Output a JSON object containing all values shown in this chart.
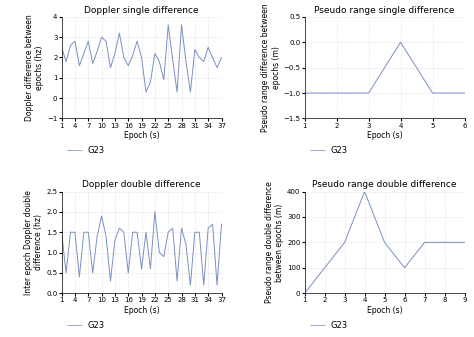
{
  "title_tl": "Doppler single difference",
  "title_tr": "Pseudo range single difference",
  "title_bl": "Doppler double difference",
  "title_br": "Pseudo range double difference",
  "xlabel": "Epoch (s)",
  "ylabel_tl": "Doppler difference between\nepochs (hz)",
  "ylabel_tr": "Pseudo range difference between\nepochs (m)",
  "ylabel_bl": "Inter epoch Doppler double\ndifference (hz)",
  "ylabel_br": "Pseudo range double difference\nbetween epochs (m)",
  "legend_label": "G23",
  "line_color": "#7a8fc2",
  "tl_ylim": [
    -1,
    4
  ],
  "tl_yticks": [
    -1,
    0,
    1,
    2,
    3,
    4
  ],
  "tl_xlim": [
    1,
    37
  ],
  "tl_xticks": [
    1,
    4,
    7,
    10,
    13,
    16,
    19,
    22,
    25,
    28,
    31,
    34,
    37
  ],
  "tr_ylim": [
    -1.5,
    0.5
  ],
  "tr_yticks": [
    -1.5,
    -1.0,
    -0.5,
    0.0,
    0.5
  ],
  "tr_xlim": [
    1,
    6
  ],
  "tr_xticks": [
    1,
    2,
    3,
    4,
    5,
    6
  ],
  "bl_ylim": [
    0,
    2.5
  ],
  "bl_yticks": [
    0,
    0.5,
    1.0,
    1.5,
    2.0,
    2.5
  ],
  "bl_xlim": [
    1,
    37
  ],
  "bl_xticks": [
    1,
    4,
    7,
    10,
    13,
    16,
    19,
    22,
    25,
    28,
    31,
    34,
    37
  ],
  "br_ylim": [
    0,
    400
  ],
  "br_yticks": [
    0,
    100,
    200,
    300,
    400
  ],
  "br_xlim": [
    1,
    9
  ],
  "br_xticks": [
    1,
    2,
    3,
    4,
    5,
    6,
    7,
    8,
    9
  ],
  "tl_x": [
    1,
    2,
    3,
    4,
    5,
    6,
    7,
    8,
    9,
    10,
    11,
    12,
    13,
    14,
    15,
    16,
    17,
    18,
    19,
    20,
    21,
    22,
    23,
    24,
    25,
    26,
    27,
    28,
    29,
    30,
    31,
    32,
    33,
    34,
    35,
    36,
    37
  ],
  "tl_y": [
    2.5,
    1.8,
    2.6,
    2.8,
    1.6,
    2.2,
    2.8,
    1.7,
    2.3,
    3.0,
    2.8,
    1.5,
    2.2,
    3.2,
    2.0,
    1.6,
    2.1,
    2.8,
    2.0,
    0.3,
    0.8,
    2.2,
    1.8,
    0.9,
    3.6,
    1.9,
    0.3,
    3.6,
    1.8,
    0.3,
    2.4,
    2.0,
    1.8,
    2.5,
    2.0,
    1.5,
    2.0
  ],
  "tr_x": [
    1,
    2,
    3,
    4,
    5,
    6
  ],
  "tr_y": [
    -1.0,
    -1.0,
    -1.0,
    0.0,
    -1.0,
    -1.0
  ],
  "bl_x": [
    1,
    2,
    3,
    4,
    5,
    6,
    7,
    8,
    9,
    10,
    11,
    12,
    13,
    14,
    15,
    16,
    17,
    18,
    19,
    20,
    21,
    22,
    23,
    24,
    25,
    26,
    27,
    28,
    29,
    30,
    31,
    32,
    33,
    34,
    35,
    36,
    37
  ],
  "bl_y": [
    1.5,
    0.5,
    1.5,
    1.5,
    0.4,
    1.5,
    1.5,
    0.5,
    1.4,
    1.9,
    1.4,
    0.3,
    1.3,
    1.6,
    1.5,
    0.5,
    1.5,
    1.5,
    0.6,
    1.5,
    0.6,
    2.0,
    1.0,
    0.9,
    1.5,
    1.6,
    0.3,
    1.6,
    1.2,
    0.2,
    1.5,
    1.5,
    0.2,
    1.6,
    1.7,
    0.2,
    1.7
  ],
  "br_x": [
    1,
    2,
    3,
    4,
    5,
    6,
    7,
    8,
    9
  ],
  "br_y": [
    0,
    100,
    200,
    400,
    200,
    100,
    200,
    200,
    200
  ],
  "background_color": "#ffffff",
  "grid_color": "#d0d0d0",
  "title_fontsize": 6.5,
  "label_fontsize": 5.5,
  "tick_fontsize": 5,
  "legend_fontsize": 6
}
